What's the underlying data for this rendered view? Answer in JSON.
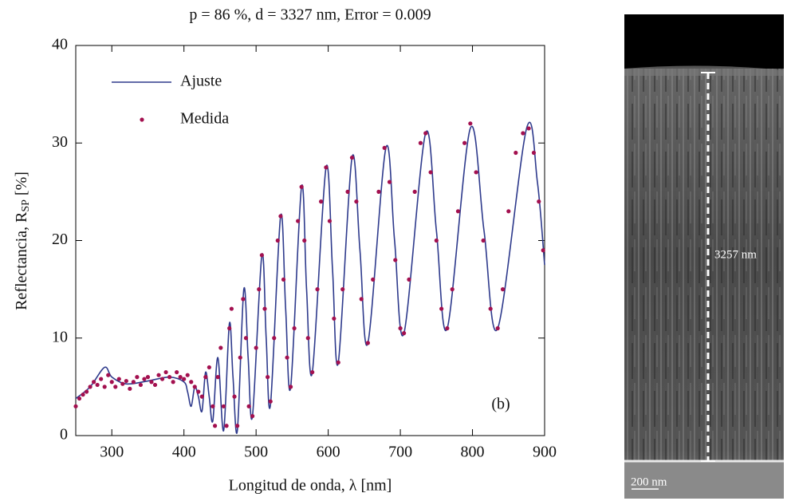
{
  "chart_data": {
    "type": "line",
    "title": "p = 86 %, d = 3327 nm, Error = 0.009",
    "xlabel": "Longitud de onda, λ [nm]",
    "ylabel": "Reflectancia, R",
    "ylabel_sub": "SP",
    "ylabel_suffix": " [%]",
    "annotation": "(b)",
    "xlim": [
      250,
      900
    ],
    "xticks": [
      300,
      400,
      500,
      600,
      700,
      800,
      900
    ],
    "ylim": [
      0,
      40
    ],
    "yticks": [
      0,
      10,
      20,
      30,
      40
    ],
    "series": [
      {
        "name": "Ajuste",
        "type": "line",
        "color": "#2e3a8c",
        "x": [
          250,
          270,
          290,
          300,
          320,
          350,
          380,
          400,
          405,
          410,
          415,
          420,
          425,
          430,
          435,
          440,
          447,
          455,
          463,
          468,
          474,
          483,
          489,
          495,
          508,
          514,
          520,
          534,
          541,
          548,
          563,
          570,
          578,
          597,
          606,
          614,
          633,
          644,
          655,
          680,
          692,
          705,
          735,
          750,
          765,
          797,
          816,
          835,
          875,
          890,
          900
        ],
        "values": [
          3.8,
          5,
          7,
          6,
          5.3,
          5.6,
          6,
          5.5,
          4.5,
          3,
          5,
          4,
          2.5,
          6.5,
          4,
          1.5,
          8,
          0.5,
          11.5,
          6,
          0.5,
          15,
          8,
          2,
          18.5,
          10,
          3.2,
          22.5,
          13,
          5,
          25.5,
          15,
          6.5,
          27.5,
          17,
          7.5,
          28.5,
          19,
          9.5,
          29.5,
          20,
          10.5,
          31,
          21,
          11,
          31.5,
          21,
          11,
          31.5,
          26,
          17.5
        ]
      },
      {
        "name": "Medida",
        "type": "scatter",
        "color": "#a3104f",
        "x": [
          250,
          255,
          260,
          265,
          270,
          275,
          280,
          285,
          290,
          295,
          300,
          305,
          310,
          315,
          320,
          325,
          330,
          335,
          340,
          345,
          350,
          355,
          360,
          365,
          370,
          375,
          380,
          385,
          390,
          395,
          400,
          405,
          410,
          415,
          420,
          425,
          430,
          435,
          440,
          443,
          447,
          451,
          455,
          459,
          463,
          466,
          470,
          474,
          478,
          482,
          486,
          490,
          495,
          500,
          504,
          508,
          512,
          516,
          520,
          525,
          530,
          534,
          538,
          543,
          548,
          553,
          558,
          563,
          567,
          572,
          578,
          585,
          590,
          597,
          602,
          608,
          614,
          620,
          627,
          633,
          639,
          646,
          655,
          662,
          670,
          678,
          685,
          693,
          700,
          705,
          712,
          720,
          728,
          735,
          742,
          750,
          757,
          765,
          772,
          780,
          789,
          797,
          805,
          815,
          825,
          835,
          842,
          850,
          860,
          870,
          878,
          885,
          892,
          898
        ],
        "values": [
          3,
          3.8,
          4.2,
          4.5,
          5,
          5.5,
          5.2,
          5.8,
          5,
          6.2,
          5.5,
          5,
          5.8,
          5.3,
          5.6,
          4.8,
          5.5,
          6,
          5.2,
          5.8,
          6,
          5.5,
          5.2,
          6.2,
          5.8,
          6.5,
          6,
          5.5,
          6.5,
          6,
          5.8,
          6.2,
          5.5,
          5,
          4.5,
          4,
          6,
          7,
          3,
          1,
          6,
          9,
          3,
          1,
          11,
          13,
          4,
          1,
          8,
          14,
          10,
          3,
          2,
          9,
          15,
          18.5,
          13,
          6,
          3.5,
          10,
          20,
          22.5,
          16,
          8,
          5,
          11,
          22,
          25.5,
          20,
          10,
          6.5,
          15,
          24,
          27.5,
          22,
          12,
          7.5,
          15,
          25,
          28.5,
          24,
          14,
          9.5,
          16,
          25,
          29.5,
          26,
          18,
          11,
          10.5,
          16,
          25,
          30,
          31,
          27,
          20,
          13,
          11,
          15,
          23,
          30,
          32,
          27,
          20,
          13,
          11,
          15,
          23,
          29,
          31,
          31.5,
          29,
          24,
          19
        ]
      }
    ]
  },
  "figure_image": {
    "thickness_label": "3257 nm",
    "scale_bar_label": "200 nm"
  }
}
